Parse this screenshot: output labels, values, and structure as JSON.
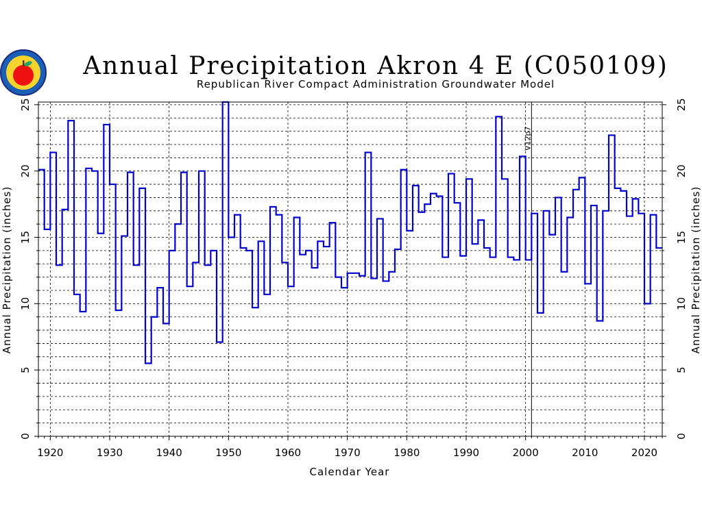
{
  "chart_data": {
    "type": "line",
    "style": "step",
    "title": "Annual Precipitation Akron 4 E (C050109)",
    "subtitle": "Republican River Compact Administration Groundwater Model",
    "xlabel": "Calendar Year",
    "ylabel": "Annual Precipitation (inches)",
    "xlim": [
      1918,
      2023
    ],
    "ylim": [
      0,
      25.2
    ],
    "xticks": [
      "1920",
      "1930",
      "1940",
      "1950",
      "1960",
      "1970",
      "1980",
      "1990",
      "2000",
      "2010",
      "2020"
    ],
    "yticks": [
      "0",
      "5",
      "10",
      "15",
      "20",
      "25"
    ],
    "grid": true,
    "line_color": "#0000cc",
    "logo_color": "#ee1111",
    "annotation": {
      "label": "V12p7",
      "x": 2001
    },
    "x": [
      1918,
      1919,
      1920,
      1921,
      1922,
      1923,
      1924,
      1925,
      1926,
      1927,
      1928,
      1929,
      1930,
      1931,
      1932,
      1933,
      1934,
      1935,
      1936,
      1937,
      1938,
      1939,
      1940,
      1941,
      1942,
      1943,
      1944,
      1945,
      1946,
      1947,
      1948,
      1949,
      1950,
      1951,
      1952,
      1953,
      1954,
      1955,
      1956,
      1957,
      1958,
      1959,
      1960,
      1961,
      1962,
      1963,
      1964,
      1965,
      1966,
      1967,
      1968,
      1969,
      1970,
      1971,
      1972,
      1973,
      1974,
      1975,
      1976,
      1977,
      1978,
      1979,
      1980,
      1981,
      1982,
      1983,
      1984,
      1985,
      1986,
      1987,
      1988,
      1989,
      1990,
      1991,
      1992,
      1993,
      1994,
      1995,
      1996,
      1997,
      1998,
      1999,
      2000,
      2001,
      2002,
      2003,
      2004,
      2005,
      2006,
      2007,
      2008,
      2009,
      2010,
      2011,
      2012,
      2013,
      2014,
      2015,
      2016,
      2017,
      2018,
      2019,
      2020,
      2021,
      2022
    ],
    "values": [
      20.1,
      15.6,
      21.4,
      12.9,
      17.1,
      23.8,
      10.7,
      9.4,
      20.2,
      20.0,
      15.3,
      23.5,
      19.0,
      9.5,
      15.1,
      19.9,
      12.9,
      18.7,
      5.5,
      9.0,
      11.2,
      8.5,
      14.0,
      16.0,
      19.9,
      11.3,
      13.1,
      20.0,
      12.9,
      14.0,
      7.1,
      25.2,
      15.0,
      16.7,
      14.2,
      14.0,
      9.7,
      14.7,
      10.7,
      17.3,
      16.7,
      13.1,
      11.3,
      16.5,
      13.7,
      14.0,
      12.7,
      14.7,
      14.3,
      16.1,
      12.0,
      11.2,
      12.3,
      12.3,
      12.1,
      21.4,
      11.9,
      16.4,
      11.7,
      12.4,
      14.1,
      20.1,
      15.5,
      18.9,
      16.9,
      17.5,
      18.3,
      18.1,
      13.5,
      19.8,
      17.6,
      13.6,
      19.4,
      14.5,
      16.3,
      14.2,
      13.5,
      24.1,
      19.4,
      13.5,
      13.3,
      21.1,
      13.3,
      16.8,
      9.3,
      17.0,
      15.2,
      18.0,
      12.4,
      16.5,
      18.6,
      19.5,
      11.5,
      17.4,
      8.7,
      17.0,
      22.7,
      18.7,
      18.5,
      16.6,
      17.9,
      16.8,
      10.0,
      16.7,
      14.2
    ]
  }
}
